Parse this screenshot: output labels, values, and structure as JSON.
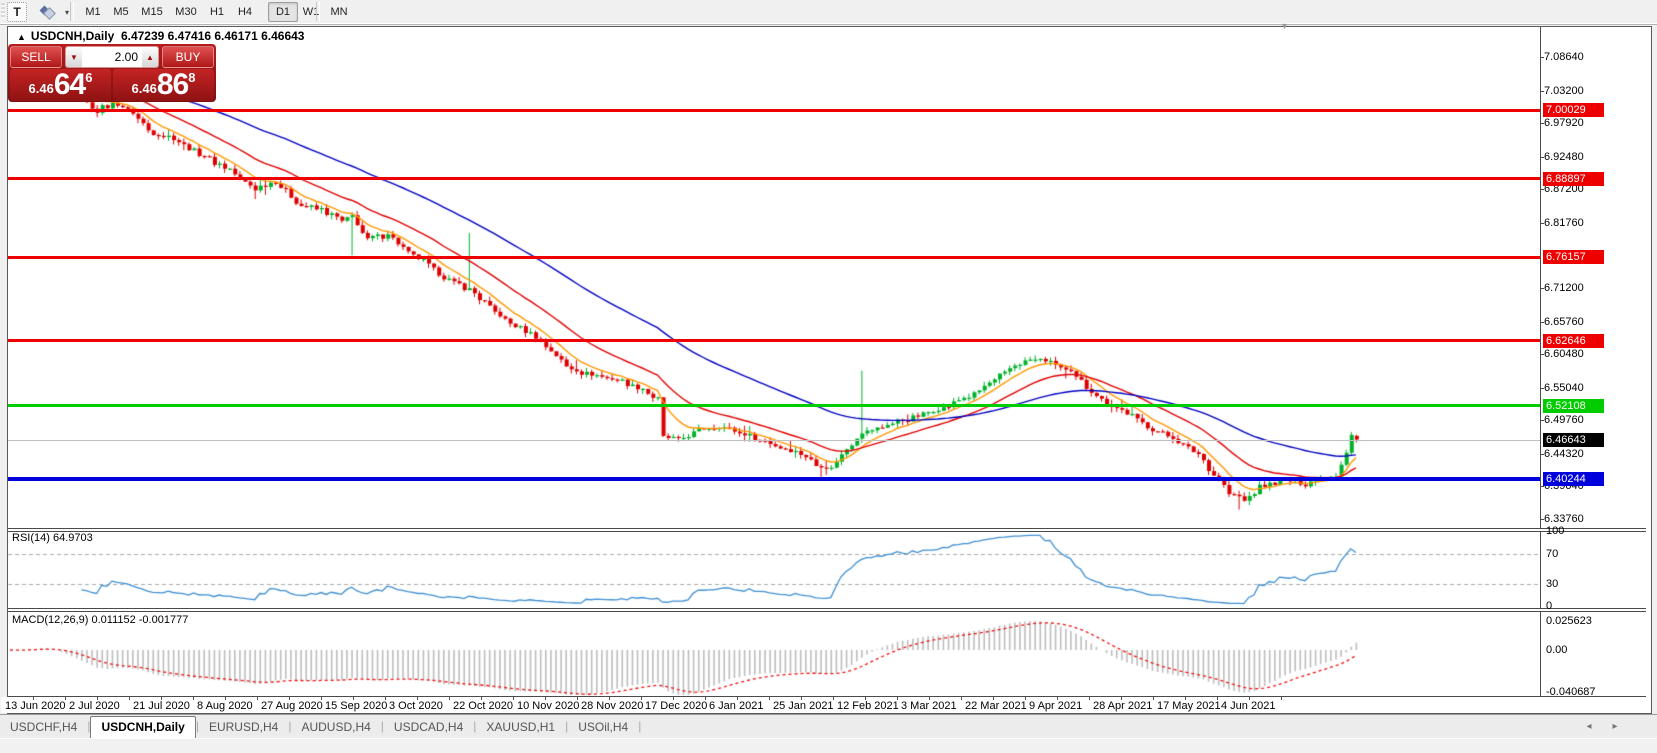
{
  "toolbar": {
    "text_tool": "T",
    "styler_dropdown": "▾",
    "timeframes": [
      {
        "label": "M1",
        "active": false
      },
      {
        "label": "M5",
        "active": false
      },
      {
        "label": "M15",
        "active": false
      },
      {
        "label": "M30",
        "active": false
      },
      {
        "label": "H1",
        "active": false
      },
      {
        "label": "H4",
        "active": false
      },
      {
        "label": "D1",
        "active": true
      },
      {
        "label": "W1",
        "active": false
      },
      {
        "label": "MN",
        "active": false
      }
    ]
  },
  "chart": {
    "title_arrow": "▲",
    "title": "USDCNH,Daily",
    "ohlc_text": "6.47239 6.47416 6.46171 6.46643",
    "shift_marker": "▼"
  },
  "trade_panel": {
    "sell_label": "SELL",
    "buy_label": "BUY",
    "volume": "2.00",
    "spin_down": "▼",
    "spin_up": "▲",
    "sell_price": {
      "prefix": "6.46",
      "big": "64",
      "sup": "6"
    },
    "buy_price": {
      "prefix": "6.46",
      "big": "86",
      "sup": "8"
    }
  },
  "price_axis": {
    "ticks": [
      "7.08640",
      "7.03200",
      "6.97920",
      "6.92480",
      "6.87200",
      "6.81760",
      "6.71200",
      "6.65760",
      "6.60480",
      "6.55040",
      "6.49760",
      "6.44320",
      "6.39040",
      "6.33760"
    ]
  },
  "levels": [
    {
      "value": "7.00029",
      "price": 7.00029,
      "color": "#ee0000",
      "thickness": 3,
      "handle": false
    },
    {
      "value": "6.88897",
      "price": 6.88897,
      "color": "#ee0000",
      "thickness": 3,
      "handle": false
    },
    {
      "value": "6.76157",
      "price": 6.76157,
      "color": "#ee0000",
      "thickness": 3,
      "handle": false
    },
    {
      "value": "6.62646",
      "price": 6.62646,
      "color": "#ee0000",
      "thickness": 3,
      "handle": true
    },
    {
      "value": "6.52108",
      "price": 6.52108,
      "color": "#00cc00",
      "thickness": 3,
      "handle": true
    },
    {
      "value": "6.40244",
      "price": 6.40244,
      "color": "#0000dd",
      "thickness": 4,
      "handle": true
    }
  ],
  "current_price": {
    "value": "6.46643",
    "price": 6.46643,
    "label_bg": "#000000"
  },
  "rsi_panel": {
    "label": "RSI(14) 64.9703",
    "scale": [
      {
        "text": "100",
        "v": 100
      },
      {
        "text": "70",
        "v": 70
      },
      {
        "text": "30",
        "v": 30
      },
      {
        "text": "0",
        "v": 0
      }
    ],
    "dashed_levels": [
      70,
      30
    ],
    "line_color": "#3f8fd2"
  },
  "macd_panel": {
    "label": "MACD(12,26,9) 0.011152 -0.001777",
    "scale": [
      {
        "text": "0.025623",
        "v": 0.025623
      },
      {
        "text": "0.00",
        "v": 0
      },
      {
        "text": "-0.040687",
        "v": -0.040687
      }
    ],
    "hist_color": "#bdbdbd",
    "signal_color": "#ee1111"
  },
  "date_axis": {
    "labels": [
      "13 Jun 2020",
      "2 Jul 2020",
      "21 Jul 2020",
      "8 Aug 2020",
      "27 Aug 2020",
      "15 Sep 2020",
      "3 Oct 2020",
      "22 Oct 2020",
      "10 Nov 2020",
      "28 Nov 2020",
      "17 Dec 2020",
      "6 Jan 2021",
      "25 Jan 2021",
      "12 Feb 2021",
      "3 Mar 2021",
      "22 Mar 2021",
      "9 Apr 2021",
      "28 Apr 2021",
      "17 May 2021",
      "4 Jun 2021"
    ]
  },
  "tabs": {
    "prev": "◂",
    "next": "▸",
    "items": [
      {
        "label": "USDCHF,H4",
        "active": false
      },
      {
        "label": "USDCNH,Daily",
        "active": true
      },
      {
        "label": "EURUSD,H4",
        "active": false
      },
      {
        "label": "AUDUSD,H4",
        "active": false
      },
      {
        "label": "USDCAD,H4",
        "active": false
      },
      {
        "label": "XAUUSD,H1",
        "active": false
      },
      {
        "label": "USOil,H4",
        "active": false
      }
    ]
  },
  "chart_data": {
    "type": "candlestick",
    "symbol": "USDCNH",
    "period": "Daily",
    "current_ohlc": {
      "open": 6.47239,
      "high": 6.47416,
      "low": 6.46171,
      "close": 6.46643
    },
    "n_candles": 265,
    "up_color": "#00b22c",
    "down_color": "#dd0000",
    "close_anchors": [
      [
        0,
        7.063
      ],
      [
        6,
        7.072
      ],
      [
        13,
        7.025
      ],
      [
        17,
        7.0
      ],
      [
        21,
        7.012
      ],
      [
        24,
        6.995
      ],
      [
        27,
        6.968
      ],
      [
        32,
        6.955
      ],
      [
        37,
        6.93
      ],
      [
        43,
        6.903
      ],
      [
        48,
        6.872
      ],
      [
        52,
        6.885
      ],
      [
        57,
        6.846
      ],
      [
        61,
        6.838
      ],
      [
        65,
        6.82
      ],
      [
        67,
        6.828
      ],
      [
        70,
        6.79
      ],
      [
        74,
        6.8
      ],
      [
        78,
        6.77
      ],
      [
        82,
        6.749
      ],
      [
        86,
        6.725
      ],
      [
        90,
        6.71
      ],
      [
        94,
        6.68
      ],
      [
        98,
        6.655
      ],
      [
        102,
        6.64
      ],
      [
        106,
        6.61
      ],
      [
        109,
        6.585
      ],
      [
        112,
        6.575
      ],
      [
        116,
        6.568
      ],
      [
        120,
        6.56
      ],
      [
        124,
        6.548
      ],
      [
        127,
        6.53
      ],
      [
        128,
        6.47
      ],
      [
        131,
        6.465
      ],
      [
        135,
        6.482
      ],
      [
        139,
        6.488
      ],
      [
        143,
        6.478
      ],
      [
        147,
        6.466
      ],
      [
        151,
        6.455
      ],
      [
        155,
        6.445
      ],
      [
        158,
        6.425
      ],
      [
        161,
        6.42
      ],
      [
        164,
        6.452
      ],
      [
        167,
        6.478
      ],
      [
        171,
        6.488
      ],
      [
        175,
        6.498
      ],
      [
        179,
        6.508
      ],
      [
        184,
        6.522
      ],
      [
        189,
        6.54
      ],
      [
        194,
        6.568
      ],
      [
        198,
        6.592
      ],
      [
        202,
        6.596
      ],
      [
        205,
        6.588
      ],
      [
        208,
        6.575
      ],
      [
        212,
        6.545
      ],
      [
        216,
        6.52
      ],
      [
        220,
        6.505
      ],
      [
        224,
        6.482
      ],
      [
        228,
        6.47
      ],
      [
        230,
        6.455
      ],
      [
        233,
        6.442
      ],
      [
        236,
        6.41
      ],
      [
        239,
        6.38
      ],
      [
        242,
        6.368
      ],
      [
        245,
        6.388
      ],
      [
        248,
        6.398
      ],
      [
        251,
        6.4
      ],
      [
        254,
        6.395
      ],
      [
        257,
        6.405
      ],
      [
        260,
        6.408
      ],
      [
        262,
        6.445
      ],
      [
        263,
        6.474
      ],
      [
        264,
        6.46643
      ]
    ],
    "wick_spikes": [
      {
        "i": 67,
        "low": 6.765
      },
      {
        "i": 90,
        "high": 6.801
      },
      {
        "i": 159,
        "low": 6.402
      },
      {
        "i": 167,
        "high": 6.578
      },
      {
        "i": 241,
        "low": 6.353
      }
    ],
    "moving_averages": [
      {
        "type": "ema",
        "period": 8,
        "color": "#ff9800"
      },
      {
        "type": "ema",
        "period": 21,
        "color": "#e00000"
      },
      {
        "type": "ema",
        "period": 55,
        "color": "#0000c0"
      }
    ],
    "rsi": {
      "period": 14,
      "current": 64.9703,
      "levels": [
        70,
        30
      ],
      "range": [
        0,
        100
      ]
    },
    "macd": {
      "fast": 12,
      "slow": 26,
      "signal": 9,
      "current_main": 0.011152,
      "current_signal": -0.001777,
      "range": [
        -0.040687,
        0.025623
      ]
    }
  }
}
